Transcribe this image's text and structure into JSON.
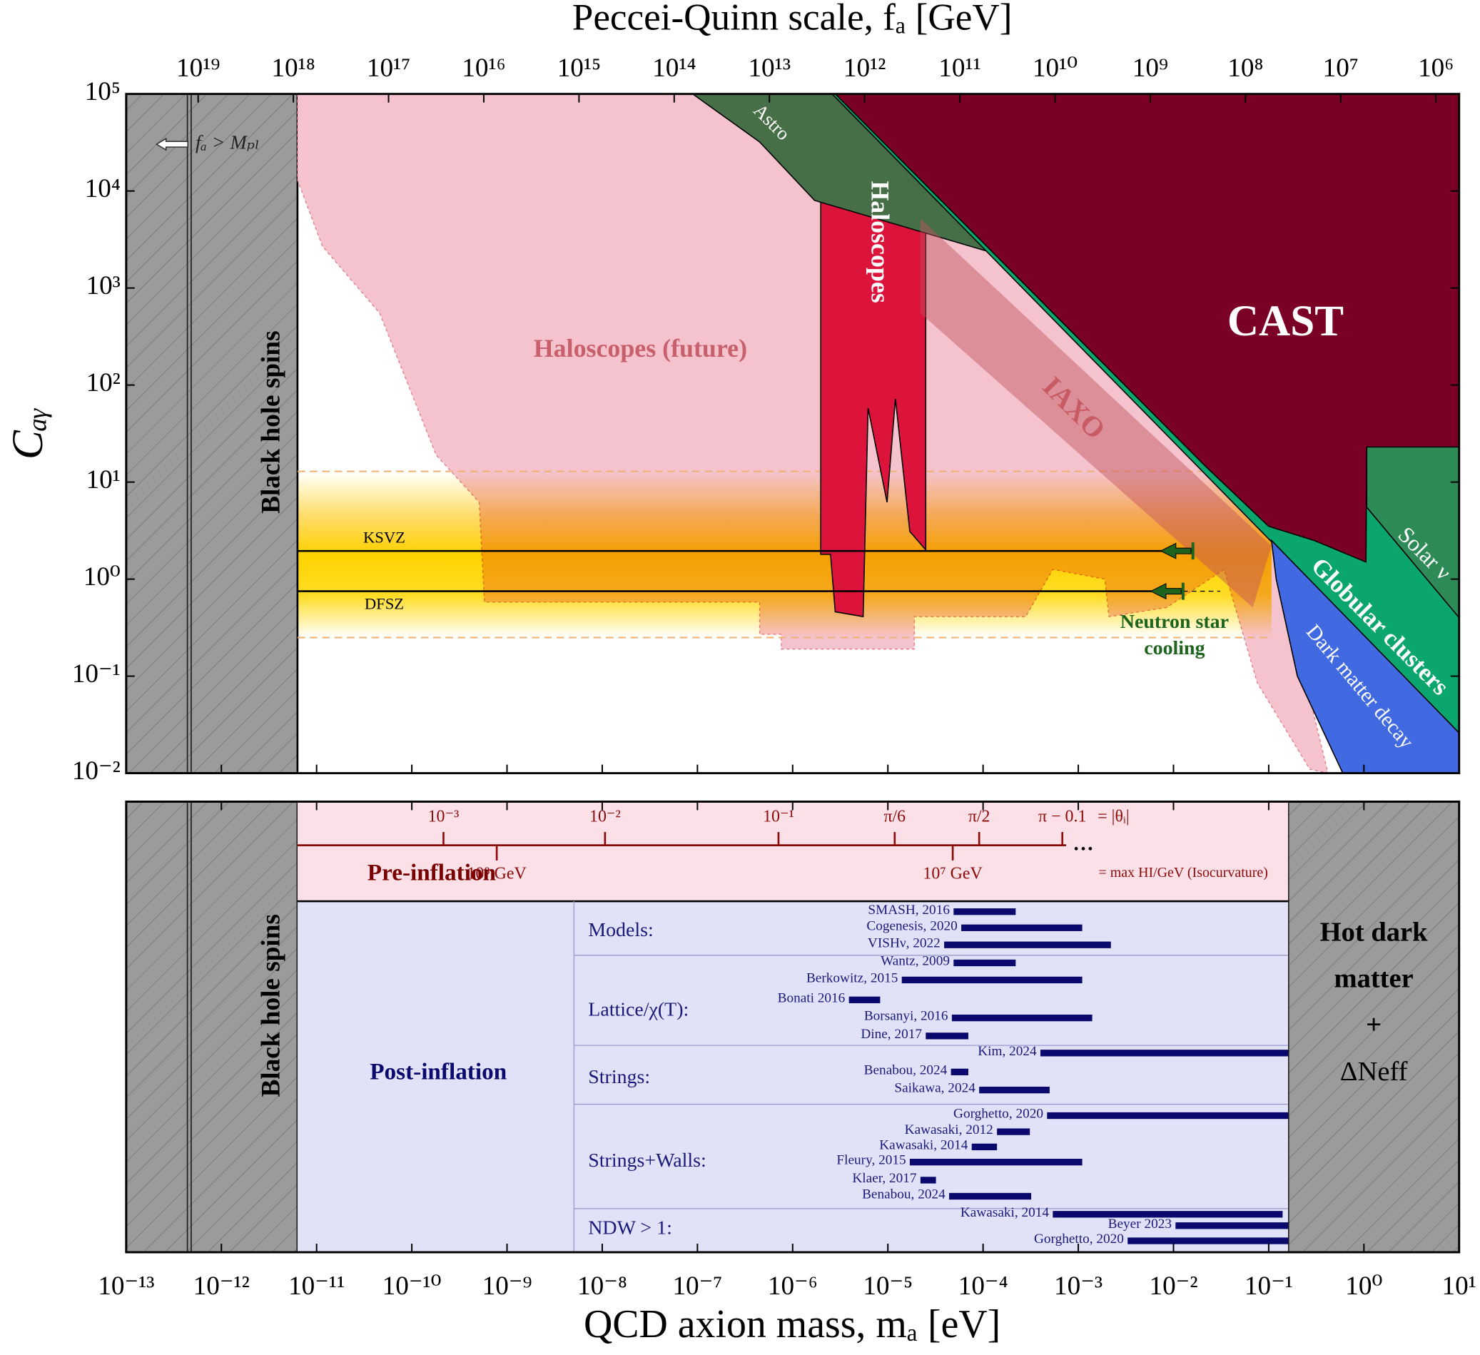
{
  "chart_data": [
    {
      "type": "region",
      "xlabel": "QCD axion mass, mₐ [eV]",
      "ylabel": "Cₐᵧ",
      "x2label": "Peccei-Quinn scale, fₐ [GeV]",
      "xscale": "log",
      "yscale": "log",
      "xlim": [
        1e-13,
        10
      ],
      "ylim": [
        0.01,
        100000
      ],
      "x2lim": [
        5.7e+19,
        570000
      ],
      "xticks": [
        {
          "value": 1e-13,
          "label": "10⁻¹³"
        },
        {
          "value": 1e-12,
          "label": "10⁻¹²"
        },
        {
          "value": 1e-11,
          "label": "10⁻¹¹"
        },
        {
          "value": 1e-10,
          "label": "10⁻¹⁰"
        },
        {
          "value": 1e-09,
          "label": "10⁻⁹"
        },
        {
          "value": 1e-08,
          "label": "10⁻⁸"
        },
        {
          "value": 1e-07,
          "label": "10⁻⁷"
        },
        {
          "value": 1e-06,
          "label": "10⁻⁶"
        },
        {
          "value": 1e-05,
          "label": "10⁻⁵"
        },
        {
          "value": 0.0001,
          "label": "10⁻⁴"
        },
        {
          "value": 0.001,
          "label": "10⁻³"
        },
        {
          "value": 0.01,
          "label": "10⁻²"
        },
        {
          "value": 0.1,
          "label": "10⁻¹"
        },
        {
          "value": 1,
          "label": "10⁰"
        },
        {
          "value": 10,
          "label": "10¹"
        }
      ],
      "yticks": [
        {
          "value": 0.01,
          "label": "10⁻²"
        },
        {
          "value": 0.1,
          "label": "10⁻¹"
        },
        {
          "value": 1,
          "label": "10⁰"
        },
        {
          "value": 10,
          "label": "10¹"
        },
        {
          "value": 100,
          "label": "10²"
        },
        {
          "value": 1000,
          "label": "10³"
        },
        {
          "value": 10000,
          "label": "10⁴"
        },
        {
          "value": 100000,
          "label": "10⁵"
        }
      ],
      "x2ticks": [
        {
          "value": 1e+19,
          "label": "10¹⁹"
        },
        {
          "value": 1e+18,
          "label": "10¹⁸"
        },
        {
          "value": 1e+17,
          "label": "10¹⁷"
        },
        {
          "value": 1e+16,
          "label": "10¹⁶"
        },
        {
          "value": 1000000000000000.0,
          "label": "10¹⁵"
        },
        {
          "value": 100000000000000.0,
          "label": "10¹⁴"
        },
        {
          "value": 10000000000000.0,
          "label": "10¹³"
        },
        {
          "value": 1000000000000.0,
          "label": "10¹²"
        },
        {
          "value": 100000000000.0,
          "label": "10¹¹"
        },
        {
          "value": 10000000000.0,
          "label": "10¹⁰"
        },
        {
          "value": 1000000000.0,
          "label": "10⁹"
        },
        {
          "value": 100000000.0,
          "label": "10⁸"
        },
        {
          "value": 10000000.0,
          "label": "10⁷"
        },
        {
          "value": 1000000.0,
          "label": "10⁶"
        }
      ],
      "exclusion": {
        "label": "Black hole spins",
        "xlim": [
          1e-13,
          6.3e-12
        ],
        "color": "#9b9b9b"
      },
      "planck": {
        "x": 4.6e-13,
        "label": "fₐ > Mₚₗ"
      },
      "band": {
        "xlim": [
          6.3e-12,
          0.107
        ],
        "ylim": [
          0.25,
          12.9
        ],
        "color": "#ffd700",
        "dash_color": "#f0b070"
      },
      "regions": [
        {
          "name": "Haloscopes (future)",
          "color": "#f5c3cd",
          "x": [
            6.3e-12,
            6.3e-12,
            1.15e-11,
            4.6e-11,
            1.8e-10,
            5.1e-10,
            5.8e-10,
            4.5e-07,
            4.5e-07,
            7.6e-07,
            7.6e-07,
            1.9e-05,
            1.9e-05,
            0.00028,
            0.00054,
            0.0019,
            0.0021,
            0.0085,
            0.034,
            0.076,
            0.27,
            0.42,
            0.107,
            2.6e-06
          ],
          "y": [
            100000,
            13000,
            2700,
            550,
            19,
            6.2,
            0.58,
            0.58,
            0.27,
            0.27,
            0.19,
            0.19,
            0.41,
            0.41,
            1.26,
            1.0,
            0.41,
            0.51,
            1.26,
            0.085,
            0.011,
            0.01,
            2.5,
            100000
          ]
        },
        {
          "name": "Haloscopes",
          "color": "#dc143c",
          "x": [
            1.97e-06,
            3.9e-06,
            1.1e-05,
            2.5e-05,
            2.5e-05,
            1.7e-05,
            1.2e-05,
            9.8e-06,
            6.2e-06,
            5.5e-06,
            2.8e-06,
            2.5e-06,
            1.97e-06
          ],
          "y": [
            100000,
            100000,
            25000,
            13000,
            2.0,
            3.1,
            72,
            6.2,
            58,
            0.41,
            0.46,
            1.8,
            1.8
          ]
        },
        {
          "name": "Astro",
          "color": "#476f47",
          "x": [
            8.9e-08,
            2.6e-06,
            0.00011,
            1.7e-06,
            4.5e-07
          ],
          "y": [
            100000,
            100000,
            2400,
            8000,
            32000
          ]
        },
        {
          "name": "Globular clusters",
          "color": "#0aa66e",
          "x": [
            2.6e-06,
            10,
            10
          ],
          "y": [
            100000,
            100000,
            0.026
          ]
        },
        {
          "name": "Solar ν",
          "color": "#2e8b57",
          "x": [
            1.07,
            10,
            10,
            1.07
          ],
          "y": [
            23,
            23,
            0.4,
            5.5
          ]
        },
        {
          "name": "CAST",
          "color": "#7a0026",
          "x": [
            2.8e-06,
            10,
            10,
            1.07,
            1.05,
            0.3,
            0.1,
            0.021
          ],
          "y": [
            100000,
            100000,
            23,
            23,
            1.5,
            2.5,
            3.5,
            15
          ]
        },
        {
          "name": "Dark matter decay",
          "color": "#4169e1",
          "x": [
            0.107,
            10,
            10,
            0.6,
            0.2,
            0.12
          ],
          "y": [
            2.5,
            0.026,
            0.01,
            0.01,
            0.1,
            1
          ]
        },
        {
          "name": "IAXO",
          "color": "#c0505a",
          "x": [
            2.2e-05,
            0.107,
            0.068,
            2.2e-05
          ],
          "y": [
            5200,
            2.2,
            0.51,
            550
          ]
        }
      ],
      "lines": [
        {
          "name": "KSVZ",
          "y": 1.95,
          "x": [
            6.3e-12,
            0.016
          ]
        },
        {
          "name": "DFSZ",
          "y": 0.75,
          "x": [
            6.3e-12,
            0.0126
          ],
          "extension": 0.031
        }
      ],
      "neutron_star": {
        "label": [
          "Neutron star",
          "cooling"
        ],
        "color": "#1e641e"
      }
    },
    {
      "type": "range",
      "bh_label": "Black hole spins",
      "hot_dm": {
        "label": [
          "Hot dark",
          "matter",
          "+",
          "ΔNeff"
        ],
        "xlim": [
          0.16,
          10
        ]
      },
      "preinflation": {
        "label": "Pre-inflation",
        "color": "#fbe1e7",
        "theta_ticks": [
          {
            "value": 2.15e-10,
            "label": "10⁻³"
          },
          {
            "value": 1.07e-08,
            "label": "10⁻²"
          },
          {
            "value": 7.1e-07,
            "label": "10⁻¹"
          },
          {
            "value": 1.18e-05,
            "label": "π/6"
          },
          {
            "value": 9.1e-05,
            "label": "π/2"
          },
          {
            "value": 0.00068,
            "label": "π − 0.1"
          }
        ],
        "ellipsis": "…",
        "theta_label": "= |θᵢ|",
        "hubble_ticks": [
          {
            "value": 7.8e-10,
            "label": "10⁸ GeV"
          },
          {
            "value": 4.8e-05,
            "label": "10⁷ GeV"
          }
        ],
        "hubble_label": "= max HI/GeV (Isocurvature)"
      },
      "postinflation": {
        "label": "Post-inflation",
        "color": "#e1e1f8",
        "groups": [
          {
            "name": "Models:",
            "bars": [
              {
                "name": "SMASH, 2016",
                "x": [
                  4.9e-05,
                  0.00022
                ]
              },
              {
                "name": "Cogenesis, 2020",
                "x": [
                  5.9e-05,
                  0.0011
                ]
              },
              {
                "name": "VISHν, 2022",
                "x": [
                  3.9e-05,
                  0.0022
                ]
              }
            ]
          },
          {
            "name": "Lattice/χ(T):",
            "bars": [
              {
                "name": "Wantz, 2009",
                "x": [
                  4.9e-05,
                  0.00022
                ]
              },
              {
                "name": "Berkowitz, 2015",
                "x": [
                  1.4e-05,
                  0.0011
                ]
              },
              {
                "name": "Bonati 2016",
                "x": [
                  3.9e-06,
                  8.3e-06
                ]
              },
              {
                "name": "Borsanyi, 2016",
                "x": [
                  4.7e-05,
                  0.0014
                ]
              },
              {
                "name": "Dine, 2017",
                "x": [
                  2.5e-05,
                  7e-05
                ]
              }
            ]
          },
          {
            "name": "Strings:",
            "bars": [
              {
                "name": "Kim, 2024",
                "x": [
                  0.0004,
                  0.16
                ]
              },
              {
                "name": "Benabou, 2024",
                "x": [
                  4.6e-05,
                  7e-05
                ]
              },
              {
                "name": "Saikawa, 2024",
                "x": [
                  9.1e-05,
                  0.0005
                ]
              }
            ]
          },
          {
            "name": "Strings+Walls:",
            "bars": [
              {
                "name": "Gorghetto, 2020",
                "x": [
                  0.00047,
                  0.16
                ]
              },
              {
                "name": "Kawasaki, 2012",
                "x": [
                  0.00014,
                  0.00031
                ]
              },
              {
                "name": "Kawasaki, 2014",
                "x": [
                  7.6e-05,
                  0.00014
                ]
              },
              {
                "name": "Fleury, 2015",
                "x": [
                  1.7e-05,
                  0.0011
                ]
              },
              {
                "name": "Klaer, 2017",
                "x": [
                  2.2e-05,
                  3.2e-05
                ]
              },
              {
                "name": "Benabou, 2024",
                "x": [
                  4.4e-05,
                  0.00032
                ]
              }
            ]
          },
          {
            "name": "NDW > 1:",
            "bars": [
              {
                "name": "Kawasaki, 2014",
                "x": [
                  0.00054,
                  0.14
                ]
              },
              {
                "name": "Beyer 2023",
                "x": [
                  0.0105,
                  0.16
                ]
              },
              {
                "name": "Gorghetto, 2020",
                "x": [
                  0.0033,
                  0.16
                ]
              }
            ]
          }
        ]
      },
      "bar_color": "#0a0a6e"
    }
  ]
}
